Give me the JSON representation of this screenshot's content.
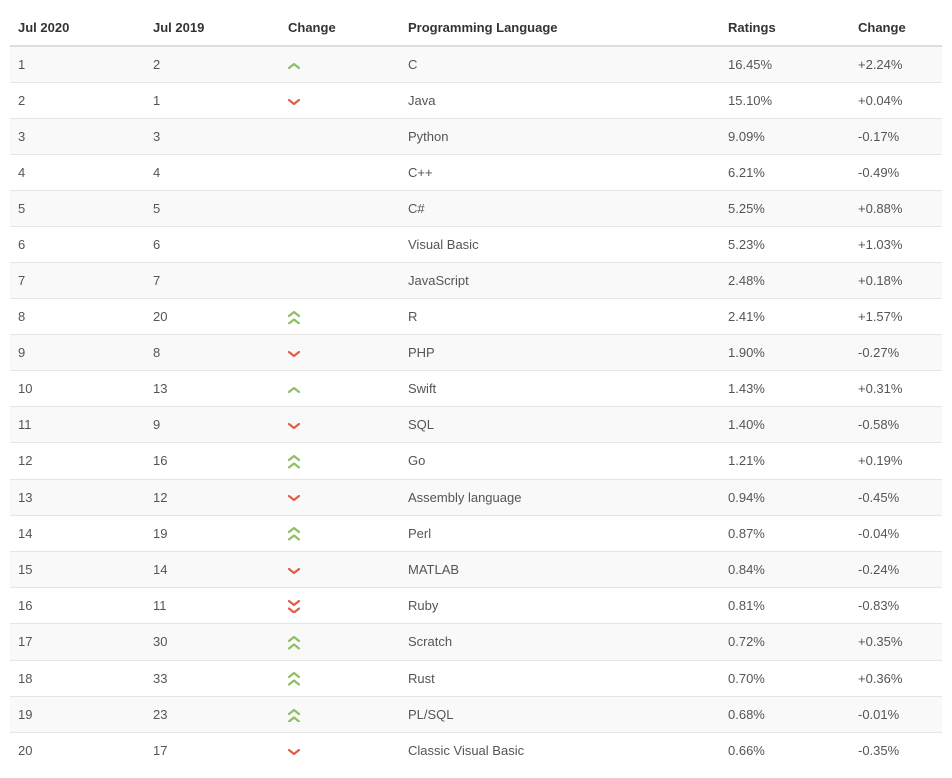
{
  "table": {
    "columns": [
      {
        "key": "jul2020",
        "label": "Jul 2020"
      },
      {
        "key": "jul2019",
        "label": "Jul 2019"
      },
      {
        "key": "change_dir",
        "label": "Change"
      },
      {
        "key": "language",
        "label": "Programming Language"
      },
      {
        "key": "ratings",
        "label": "Ratings"
      },
      {
        "key": "change_pct",
        "label": "Change"
      }
    ],
    "rows": [
      {
        "jul2020": "1",
        "jul2019": "2",
        "change_dir": "up",
        "language": "C",
        "ratings": "16.45%",
        "change_pct": "+2.24%"
      },
      {
        "jul2020": "2",
        "jul2019": "1",
        "change_dir": "down",
        "language": "Java",
        "ratings": "15.10%",
        "change_pct": "+0.04%"
      },
      {
        "jul2020": "3",
        "jul2019": "3",
        "change_dir": "",
        "language": "Python",
        "ratings": "9.09%",
        "change_pct": "-0.17%"
      },
      {
        "jul2020": "4",
        "jul2019": "4",
        "change_dir": "",
        "language": "C++",
        "ratings": "6.21%",
        "change_pct": "-0.49%"
      },
      {
        "jul2020": "5",
        "jul2019": "5",
        "change_dir": "",
        "language": "C#",
        "ratings": "5.25%",
        "change_pct": "+0.88%"
      },
      {
        "jul2020": "6",
        "jul2019": "6",
        "change_dir": "",
        "language": "Visual Basic",
        "ratings": "5.23%",
        "change_pct": "+1.03%"
      },
      {
        "jul2020": "7",
        "jul2019": "7",
        "change_dir": "",
        "language": "JavaScript",
        "ratings": "2.48%",
        "change_pct": "+0.18%"
      },
      {
        "jul2020": "8",
        "jul2019": "20",
        "change_dir": "upup",
        "language": "R",
        "ratings": "2.41%",
        "change_pct": "+1.57%"
      },
      {
        "jul2020": "9",
        "jul2019": "8",
        "change_dir": "down",
        "language": "PHP",
        "ratings": "1.90%",
        "change_pct": "-0.27%"
      },
      {
        "jul2020": "10",
        "jul2019": "13",
        "change_dir": "up",
        "language": "Swift",
        "ratings": "1.43%",
        "change_pct": "+0.31%"
      },
      {
        "jul2020": "11",
        "jul2019": "9",
        "change_dir": "down",
        "language": "SQL",
        "ratings": "1.40%",
        "change_pct": "-0.58%"
      },
      {
        "jul2020": "12",
        "jul2019": "16",
        "change_dir": "upup",
        "language": "Go",
        "ratings": "1.21%",
        "change_pct": "+0.19%"
      },
      {
        "jul2020": "13",
        "jul2019": "12",
        "change_dir": "down",
        "language": "Assembly language",
        "ratings": "0.94%",
        "change_pct": "-0.45%"
      },
      {
        "jul2020": "14",
        "jul2019": "19",
        "change_dir": "upup",
        "language": "Perl",
        "ratings": "0.87%",
        "change_pct": "-0.04%"
      },
      {
        "jul2020": "15",
        "jul2019": "14",
        "change_dir": "down",
        "language": "MATLAB",
        "ratings": "0.84%",
        "change_pct": "-0.24%"
      },
      {
        "jul2020": "16",
        "jul2019": "11",
        "change_dir": "downdown",
        "language": "Ruby",
        "ratings": "0.81%",
        "change_pct": "-0.83%"
      },
      {
        "jul2020": "17",
        "jul2019": "30",
        "change_dir": "upup",
        "language": "Scratch",
        "ratings": "0.72%",
        "change_pct": "+0.35%"
      },
      {
        "jul2020": "18",
        "jul2019": "33",
        "change_dir": "upup",
        "language": "Rust",
        "ratings": "0.70%",
        "change_pct": "+0.36%"
      },
      {
        "jul2020": "19",
        "jul2019": "23",
        "change_dir": "upup",
        "language": "PL/SQL",
        "ratings": "0.68%",
        "change_pct": "-0.01%"
      },
      {
        "jul2020": "20",
        "jul2019": "17",
        "change_dir": "down",
        "language": "Classic Visual Basic",
        "ratings": "0.66%",
        "change_pct": "-0.35%"
      }
    ],
    "icon_colors": {
      "up": "#8ebf65",
      "down": "#e15d44"
    },
    "header_text_color": "#333333",
    "body_text_color": "#555555",
    "row_odd_bg": "#f9f9f9",
    "row_even_bg": "#ffffff",
    "border_color": "#e5e5e5",
    "header_border_color": "#dddddd",
    "font_size": 13
  }
}
